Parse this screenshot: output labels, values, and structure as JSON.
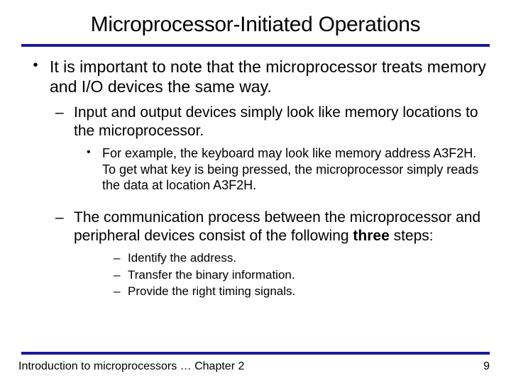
{
  "colors": {
    "rule": "#1a1a9a",
    "text": "#000000",
    "background": "#ffffff"
  },
  "fontsize": {
    "title": 30,
    "l1": 23,
    "l2": 21,
    "l3": 18,
    "l4": 17,
    "footer": 16
  },
  "title": "Microprocessor-Initiated Operations",
  "body": {
    "b1": "It is important to note that the microprocessor treats memory and I/O devices the same way.",
    "b1_1": "Input and output devices simply look like memory locations to the microprocessor.",
    "b1_1_1": "For example, the keyboard may look like memory address A3F2H. To get what key is being pressed, the microprocessor simply reads the data at location A3F2H.",
    "b1_2_pre": "The communication process between the microprocessor and peripheral devices consist of the following ",
    "b1_2_bold": "three",
    "b1_2_post": " steps:",
    "b1_2_1": "Identify the address.",
    "b1_2_2": "Transfer the binary information.",
    "b1_2_3": "Provide the right timing signals."
  },
  "footer": {
    "left": "Introduction to microprocessors … Chapter 2",
    "page": "9"
  }
}
